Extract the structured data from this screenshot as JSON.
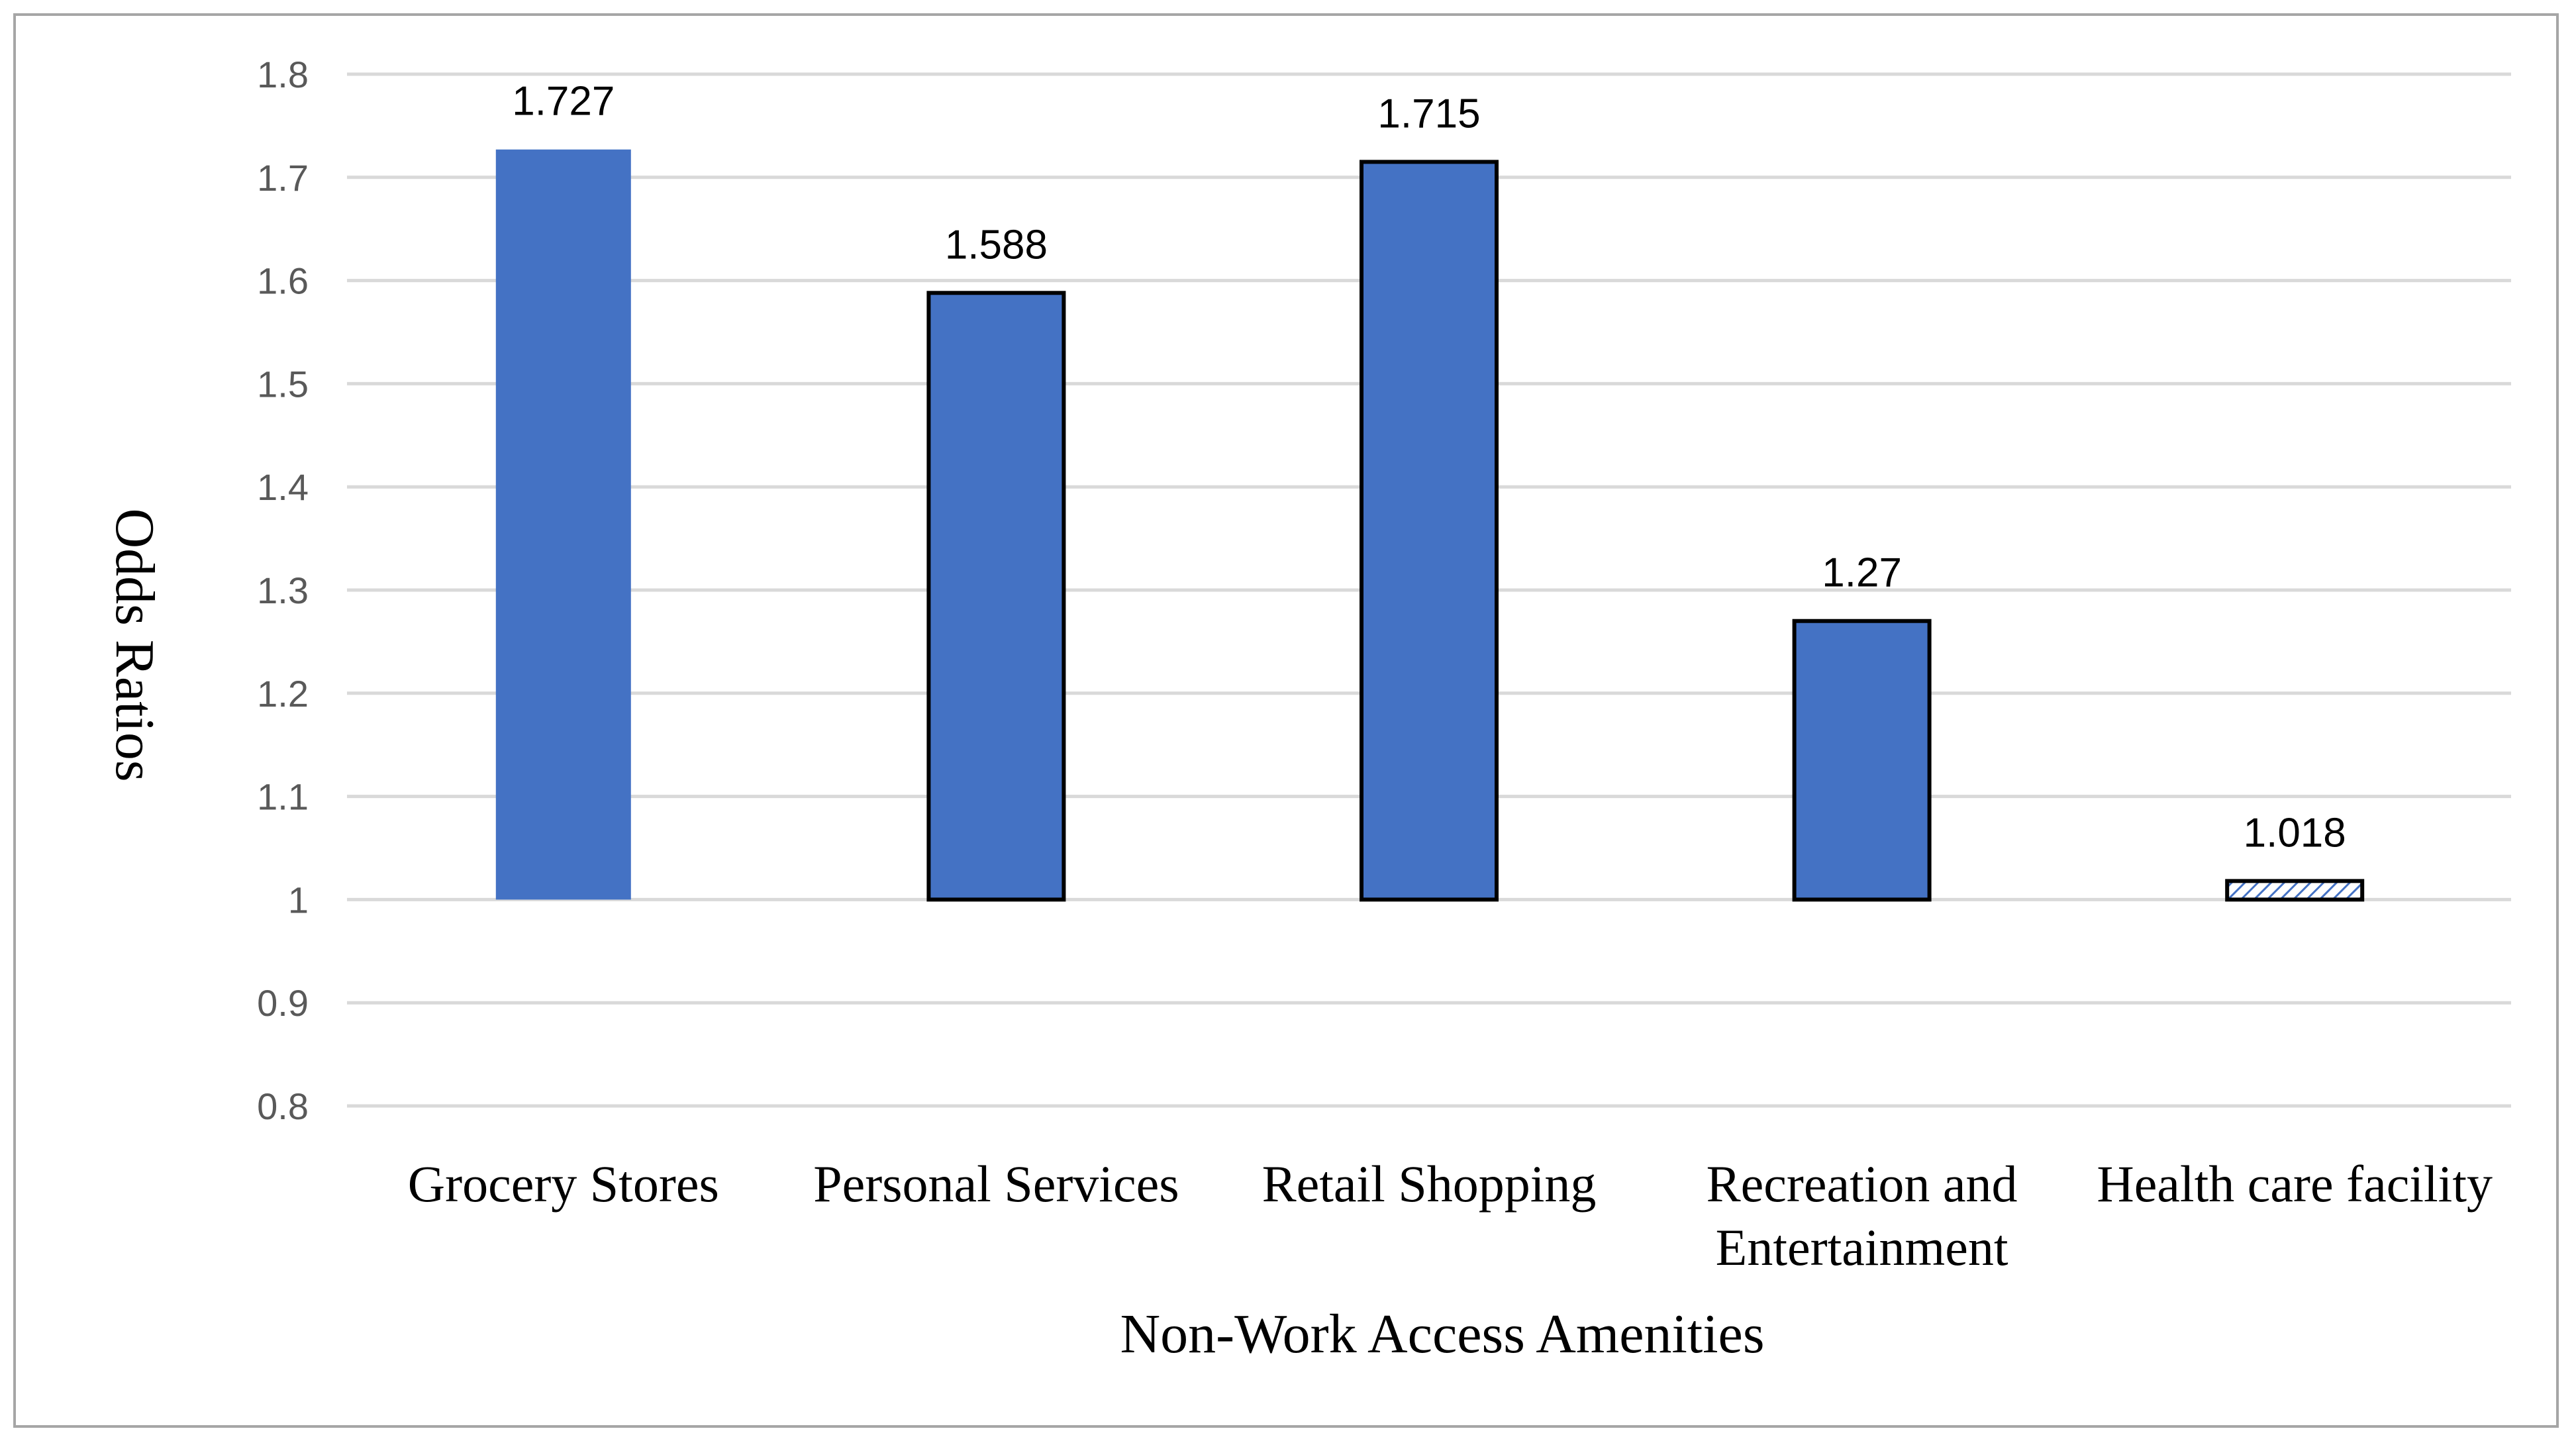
{
  "chart_data": {
    "type": "bar",
    "title": "",
    "xlabel": "Non-Work Access Amenities",
    "ylabel": "Odds Ratios",
    "categories": [
      [
        "Grocery Stores"
      ],
      [
        "Personal Services"
      ],
      [
        "Retail Shopping"
      ],
      [
        "Recreation and",
        "Entertainment"
      ],
      [
        "Health care facility"
      ]
    ],
    "values": [
      1.727,
      1.588,
      1.715,
      1.27,
      1.018
    ],
    "value_labels": [
      "1.727",
      "1.588",
      "1.715",
      "1.27",
      "1.018"
    ],
    "baseline": 1,
    "ylim": [
      0.8,
      1.8
    ],
    "yticks": [
      0.8,
      0.9,
      1,
      1.1,
      1.2,
      1.3,
      1.4,
      1.5,
      1.6,
      1.7,
      1.8
    ],
    "ytick_labels": [
      "0.8",
      "0.9",
      "1",
      "1.1",
      "1.2",
      "1.3",
      "1.4",
      "1.5",
      "1.6",
      "1.7",
      "1.8"
    ],
    "grid": true,
    "legend": "none",
    "bar_fills": [
      "solid",
      "solid",
      "solid",
      "solid",
      "hatched"
    ],
    "bar_outlined": [
      false,
      true,
      true,
      true,
      true
    ],
    "colors": {
      "bar": "#4472c4",
      "grid": "#d9d9d9",
      "frame": "#a6a6a6",
      "outline": "#000000"
    }
  }
}
